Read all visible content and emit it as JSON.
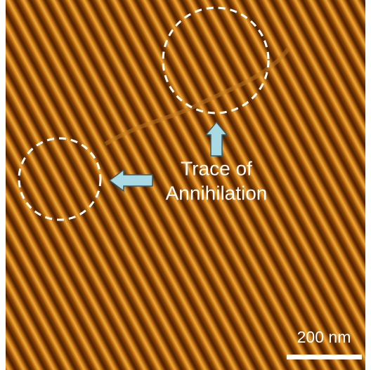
{
  "annotation": {
    "lines": [
      "Trace of",
      "Annihilation"
    ]
  },
  "scale_bar": {
    "label": "200 nm"
  }
}
